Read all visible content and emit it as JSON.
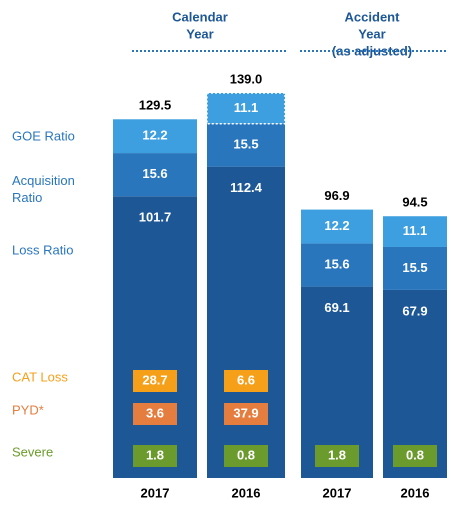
{
  "chart_data": {
    "type": "stacked_bar",
    "groups": [
      {
        "lines": [
          "Calendar",
          "Year"
        ]
      },
      {
        "lines": [
          "Accident",
          "Year",
          "(as adjusted)"
        ]
      }
    ],
    "categories": [
      "2017",
      "2016",
      "2017",
      "2016"
    ],
    "totals": {
      "values": [
        129.5,
        139.0,
        96.9,
        94.5
      ],
      "value_labels": [
        "129.5",
        "139.0",
        "96.9",
        "94.5"
      ]
    },
    "series": [
      {
        "name": "Loss Ratio",
        "color": "#1d5796",
        "values": [
          101.7,
          112.4,
          69.1,
          67.9
        ]
      },
      {
        "name": "Acquisition Ratio",
        "color": "#2a76bd",
        "values": [
          15.6,
          15.5,
          15.6,
          15.5
        ]
      },
      {
        "name": "GOE Ratio",
        "color": "#3d9fe0",
        "values": [
          12.2,
          11.1,
          12.2,
          11.1
        ]
      }
    ],
    "overlays": [
      {
        "name": "CAT Loss",
        "color": "#f6a01a",
        "values": [
          28.7,
          6.6,
          null,
          null
        ]
      },
      {
        "name": "PYD*",
        "color": "#e57d3f",
        "values": [
          3.6,
          37.9,
          null,
          null
        ]
      },
      {
        "name": "Severe",
        "color": "#6b9b2c",
        "values": [
          1.8,
          0.8,
          1.8,
          0.8
        ]
      }
    ]
  }
}
